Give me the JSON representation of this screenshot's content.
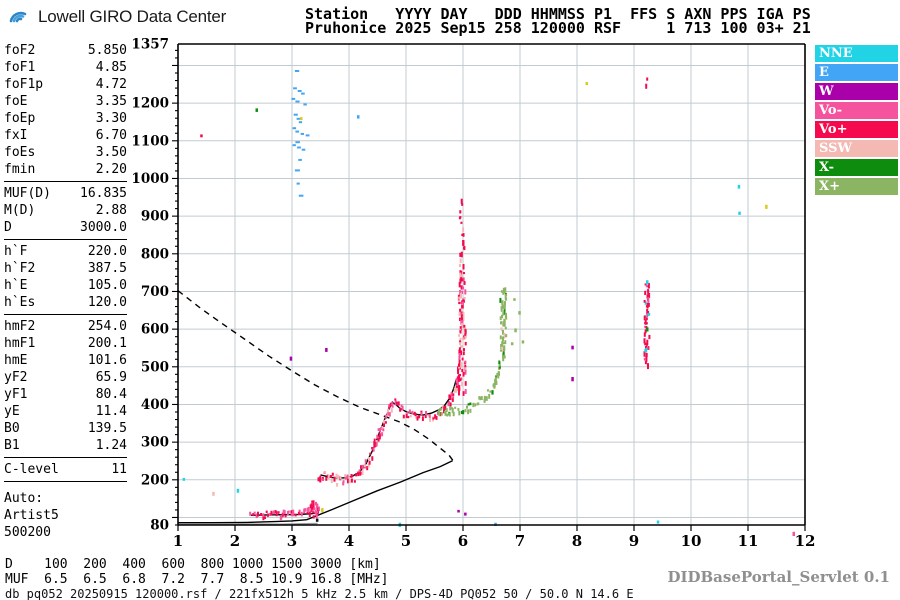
{
  "header": {
    "app_title": "Lowell GIRO Data Center",
    "record_line1": "Station   YYYY DAY   DDD HHMMSS P1  FFS S AXN PPS IGA PS",
    "record_line2": "Pruhonice 2025 Sep15 258 120000 RSF     1 713 100 03+ 21"
  },
  "parameters": {
    "groups": [
      {
        "rows": [
          [
            "foF2",
            "5.850"
          ],
          [
            "foF1",
            "4.85"
          ],
          [
            "foF1p",
            "4.72"
          ],
          [
            "foE",
            "3.35"
          ],
          [
            "foEp",
            "3.30"
          ],
          [
            "fxI",
            "6.70"
          ],
          [
            "foEs",
            "3.50"
          ],
          [
            "fmin",
            "2.20"
          ]
        ]
      },
      {
        "rows": [
          [
            "MUF(D)",
            "16.835"
          ],
          [
            "M(D)",
            "2.88"
          ],
          [
            "D",
            "3000.0"
          ]
        ]
      },
      {
        "rows": [
          [
            "h`F",
            "220.0"
          ],
          [
            "h`F2",
            "387.5"
          ],
          [
            "h`E",
            "105.0"
          ],
          [
            "h`Es",
            "120.0"
          ]
        ]
      },
      {
        "rows": [
          [
            "hmF2",
            "254.0"
          ],
          [
            "hmF1",
            "200.1"
          ],
          [
            "hmE",
            "101.6"
          ],
          [
            "yF2",
            "65.9"
          ],
          [
            "yF1",
            "80.4"
          ],
          [
            "yE",
            "11.4"
          ],
          [
            "B0",
            "139.5"
          ],
          [
            "B1",
            "1.24"
          ]
        ]
      },
      {
        "rows": [
          [
            "C-level",
            "11"
          ]
        ]
      }
    ],
    "auto_block": [
      "Auto:",
      "Artist5",
      "500200"
    ]
  },
  "legend": [
    {
      "label": "NNE",
      "color": "#22D3E6"
    },
    {
      "label": "E",
      "color": "#42A5F5"
    },
    {
      "label": "W",
      "color": "#AA00AA"
    },
    {
      "label": "Vo-",
      "color": "#F6539E"
    },
    {
      "label": "Vo+",
      "color": "#F50A4E"
    },
    {
      "label": "SSW",
      "color": "#F4B9B2"
    },
    {
      "label": "X-",
      "color": "#0E8C0E"
    },
    {
      "label": "X+",
      "color": "#8CB563"
    }
  ],
  "palette": {
    "nne": "#22D3E6",
    "e": "#42A5F5",
    "w": "#AA00AA",
    "vom": "#F6539E",
    "vop": "#F50A4E",
    "ssw": "#F4B9B2",
    "xm": "#0E8C0E",
    "xp": "#8CB563",
    "yellow": "#D9CC1C",
    "black": "#111111",
    "grid": "#C2CBD2",
    "axis": "#000000"
  },
  "footer": {
    "d_label": "D",
    "muf_label": "MUF",
    "d_values": [
      "100",
      "200",
      "400",
      "600",
      "800",
      "1000",
      "1500",
      "3000"
    ],
    "muf_values": [
      "6.5",
      "6.5",
      "6.8",
      "7.2",
      "7.7",
      "8.5",
      "10.9",
      "16.8"
    ],
    "d_unit": "[km]",
    "muf_unit": "[MHz]",
    "status_line": "db pq052 20250915 120000.rsf / 221fx512h 5 kHz 2.5 km / DPS-4D PQ052 50 / 50.0 N 14.6 E",
    "servlet_label": "DIDBasePortal_Servlet 0.1"
  },
  "chart_data": {
    "type": "scatter",
    "title": "Pruhonice ionogram 2025 Sep15 120000",
    "x_axis": {
      "unit": "MHz",
      "range": [
        1,
        12
      ],
      "ticks": [
        1,
        2,
        3,
        4,
        5,
        6,
        7,
        8,
        9,
        10,
        11,
        12
      ],
      "grid_step": 1
    },
    "y_axis": {
      "unit": "km",
      "range": [
        80,
        1357
      ],
      "tick_labels": [
        1357,
        1200,
        1100,
        1000,
        900,
        800,
        700,
        600,
        500,
        400,
        300,
        200,
        80
      ],
      "grid_step": 100,
      "minor_tick_step": 20
    },
    "lines": [
      {
        "name": "transmission-curve",
        "style": "dashed",
        "color": "black",
        "points": [
          [
            1.0,
            702
          ],
          [
            1.4,
            655
          ],
          [
            1.8,
            612
          ],
          [
            2.2,
            570
          ],
          [
            2.6,
            528
          ],
          [
            3.0,
            489
          ],
          [
            3.4,
            452
          ],
          [
            3.8,
            420
          ],
          [
            4.2,
            392
          ],
          [
            4.6,
            370
          ],
          [
            4.9,
            353
          ],
          [
            5.15,
            333
          ],
          [
            5.4,
            308
          ],
          [
            5.6,
            284
          ],
          [
            5.75,
            266
          ],
          [
            5.82,
            252
          ]
        ]
      },
      {
        "name": "true-height-profile",
        "style": "solid",
        "color": "black",
        "points": [
          [
            1.0,
            86
          ],
          [
            1.6,
            86
          ],
          [
            2.2,
            87
          ],
          [
            2.7,
            89
          ],
          [
            3.0,
            91
          ],
          [
            3.26,
            94
          ],
          [
            3.7,
            121
          ],
          [
            4.1,
            146
          ],
          [
            4.5,
            171
          ],
          [
            4.9,
            194
          ],
          [
            5.3,
            219
          ],
          [
            5.6,
            235
          ],
          [
            5.82,
            251
          ]
        ]
      },
      {
        "name": "fitted-o-trace",
        "style": "solid",
        "color": "black",
        "points": [
          [
            3.5,
            213
          ],
          [
            3.7,
            206
          ],
          [
            3.9,
            205
          ],
          [
            4.05,
            209
          ],
          [
            4.18,
            220
          ],
          [
            4.3,
            243
          ],
          [
            4.42,
            280
          ],
          [
            4.52,
            320
          ],
          [
            4.62,
            358
          ],
          [
            4.7,
            388
          ],
          [
            4.76,
            406
          ],
          [
            4.82,
            400
          ],
          [
            4.9,
            389
          ],
          [
            5.0,
            381
          ],
          [
            5.15,
            374
          ],
          [
            5.3,
            372
          ],
          [
            5.45,
            377
          ],
          [
            5.58,
            386
          ],
          [
            5.68,
            398
          ],
          [
            5.78,
            420
          ],
          [
            5.84,
            444
          ],
          [
            5.88,
            466
          ]
        ]
      },
      {
        "name": "baseline-gray",
        "style": "solid",
        "color": "#9a9a9a",
        "points": [
          [
            1.0,
            83
          ],
          [
            2.0,
            83
          ],
          [
            2.8,
            82
          ],
          [
            3.45,
            84
          ]
        ]
      },
      {
        "name": "es-baseline",
        "style": "solid",
        "color": "black",
        "points": [
          [
            2.28,
            106
          ],
          [
            2.7,
            107
          ],
          [
            3.1,
            108
          ],
          [
            3.35,
            110
          ],
          [
            3.45,
            113
          ]
        ]
      }
    ],
    "traces": [
      {
        "name": "o-trace-F",
        "jitter": 5,
        "colors": {
          "vop": 5,
          "vom": 3,
          "ssw": 2
        },
        "points": [
          [
            3.45,
            216
          ],
          [
            3.6,
            209
          ],
          [
            3.75,
            205
          ],
          [
            3.9,
            204
          ],
          [
            4.05,
            209
          ],
          [
            4.15,
            218
          ],
          [
            4.25,
            235
          ],
          [
            4.35,
            262
          ],
          [
            4.45,
            300
          ],
          [
            4.55,
            338
          ],
          [
            4.65,
            372
          ],
          [
            4.72,
            394
          ],
          [
            4.78,
            406
          ],
          [
            4.84,
            401
          ],
          [
            4.92,
            389
          ],
          [
            5.0,
            381
          ],
          [
            5.1,
            375
          ],
          [
            5.25,
            371
          ],
          [
            5.4,
            374
          ],
          [
            5.52,
            381
          ],
          [
            5.62,
            391
          ],
          [
            5.72,
            406
          ],
          [
            5.8,
            426
          ],
          [
            5.86,
            450
          ],
          [
            5.9,
            478
          ],
          [
            5.93,
            510
          ]
        ]
      },
      {
        "name": "es-trace",
        "jitter": 3,
        "colors": {
          "vop": 5,
          "vom": 4
        },
        "points": [
          [
            2.25,
            110
          ],
          [
            2.4,
            111
          ],
          [
            2.55,
            111
          ],
          [
            2.7,
            112
          ],
          [
            2.85,
            113
          ],
          [
            3.0,
            114
          ],
          [
            3.1,
            116
          ],
          [
            3.2,
            119
          ],
          [
            3.28,
            125
          ]
        ]
      },
      {
        "name": "x-trace",
        "jitter": 4,
        "colors": {
          "xp": 8,
          "xm": 2
        },
        "points": [
          [
            5.55,
            384
          ],
          [
            5.7,
            386
          ],
          [
            5.85,
            389
          ],
          [
            6.0,
            393
          ],
          [
            6.12,
            399
          ],
          [
            6.24,
            408
          ],
          [
            6.35,
            421
          ],
          [
            6.45,
            438
          ],
          [
            6.53,
            459
          ],
          [
            6.6,
            486
          ],
          [
            6.64,
            515
          ]
        ]
      }
    ],
    "columns": [
      {
        "name": "o-asymptote-dense",
        "f": 5.97,
        "h0": 432,
        "h1": 755,
        "spread": 3.5,
        "step": 2,
        "colors": {
          "vop": 6,
          "vom": 2,
          "ssw": 2
        }
      },
      {
        "name": "o-asymptote-sparse",
        "f": 5.96,
        "h0": 760,
        "h1": 948,
        "spread": 3,
        "step": 6,
        "colors": {
          "vop": 7,
          "ssw": 3
        }
      },
      {
        "name": "x-asymptote",
        "f": 6.69,
        "h0": 520,
        "h1": 712,
        "spread": 3,
        "step": 2.5,
        "colors": {
          "xp": 8,
          "xm": 1,
          "ssw": 1
        }
      },
      {
        "name": "second-hop-cluster",
        "f": 9.21,
        "h0": 506,
        "h1": 723,
        "spread": 2.5,
        "step": 2.5,
        "colors": {
          "vop": 8,
          "vom": 1,
          "nne": 1
        }
      },
      {
        "name": "second-hop-top",
        "f": 9.2,
        "h0": 1246,
        "h1": 1266,
        "spread": 1,
        "step": 5,
        "colors": {
          "vop": 1
        }
      },
      {
        "name": "es-spread-1",
        "f": 3.3,
        "h0": 106,
        "h1": 137,
        "spread": 1.5,
        "step": 3,
        "colors": {
          "vop": 6,
          "vom": 4
        }
      },
      {
        "name": "es-spread-2",
        "f": 3.35,
        "h0": 105,
        "h1": 146,
        "spread": 1.5,
        "step": 3,
        "colors": {
          "vop": 6,
          "vom": 4
        }
      },
      {
        "name": "es-spread-3",
        "f": 3.4,
        "h0": 106,
        "h1": 143,
        "spread": 1.5,
        "step": 3,
        "colors": {
          "vop": 6,
          "vom": 4
        }
      },
      {
        "name": "es-spread-4",
        "f": 3.44,
        "h0": 108,
        "h1": 131,
        "spread": 1.5,
        "step": 3,
        "colors": {
          "vop": 6,
          "vom": 4
        }
      }
    ],
    "clusters": [
      {
        "name": "spread-f-echoes",
        "color": "e",
        "points": [
          [
            3.05,
            1288
          ],
          [
            3.02,
            1242
          ],
          [
            3.1,
            1235
          ],
          [
            3.16,
            1228
          ],
          [
            2.99,
            1214
          ],
          [
            3.06,
            1207
          ],
          [
            3.2,
            1199
          ],
          [
            3.03,
            1172
          ],
          [
            3.08,
            1161
          ],
          [
            3.12,
            1152
          ],
          [
            3.01,
            1136
          ],
          [
            3.06,
            1127
          ],
          [
            3.15,
            1121
          ],
          [
            3.24,
            1117
          ],
          [
            3.06,
            1099
          ],
          [
            3.01,
            1091
          ],
          [
            3.09,
            1085
          ],
          [
            3.17,
            1079
          ],
          [
            3.11,
            1052
          ],
          [
            3.05,
            1024
          ],
          [
            3.08,
            989
          ],
          [
            3.12,
            957
          ]
        ]
      }
    ],
    "stray_points": [
      [
        "vop",
        1.39,
        1117
      ],
      [
        "xm",
        2.36,
        1186
      ],
      [
        "yellow",
        3.14,
        1163
      ],
      [
        "yellow",
        8.15,
        1256
      ],
      [
        "nne",
        10.82,
        983
      ],
      [
        "nne",
        10.83,
        912
      ],
      [
        "yellow",
        11.3,
        930
      ],
      [
        "w",
        7.9,
        556
      ],
      [
        "w",
        7.9,
        473
      ],
      [
        "w",
        5.9,
        120
      ],
      [
        "w",
        6.02,
        113
      ],
      [
        "w",
        2.96,
        527
      ],
      [
        "w",
        3.58,
        550
      ],
      [
        "nne",
        2.03,
        176
      ],
      [
        "nne",
        1.08,
        205
      ],
      [
        "ssw",
        1.6,
        168
      ],
      [
        "nne",
        4.87,
        86
      ],
      [
        "e",
        6.55,
        86
      ],
      [
        "vom",
        11.78,
        62
      ],
      [
        "nne",
        9.4,
        92
      ],
      [
        "xp",
        6.84,
        565
      ],
      [
        "xp",
        6.9,
        602
      ],
      [
        "xp",
        6.97,
        648
      ],
      [
        "xp",
        6.88,
        682
      ],
      [
        "xp",
        7.03,
        570
      ],
      [
        "xm",
        9.21,
        605
      ],
      [
        "nne",
        9.21,
        730
      ],
      [
        "nne",
        9.24,
        643
      ],
      [
        "nne",
        9.18,
        548
      ],
      [
        "yellow",
        3.51,
        125
      ],
      [
        "black",
        3.42,
        97
      ],
      [
        "e",
        4.14,
        1168
      ]
    ]
  }
}
